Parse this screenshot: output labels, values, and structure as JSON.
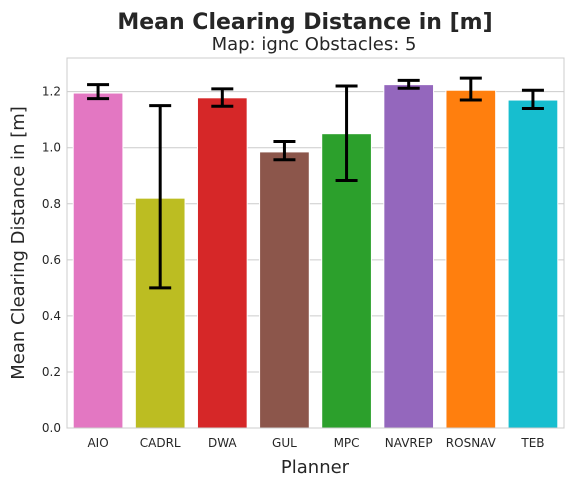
{
  "chart_data": {
    "type": "bar",
    "title": "Mean Clearing Distance in [m]",
    "subtitle": "Map: ignc Obstacles: 5",
    "xlabel": "Planner",
    "ylabel": "Mean Clearing Distance in [m]",
    "ylim": [
      0,
      1.32
    ],
    "yticks": [
      0.0,
      0.2,
      0.4,
      0.6,
      0.8,
      1.0,
      1.2
    ],
    "ytick_labels": [
      "0.0",
      "0.2",
      "0.4",
      "0.6",
      "0.8",
      "1.0",
      "1.2"
    ],
    "grid": "horizontal",
    "categories": [
      "AIO",
      "CADRL",
      "DWA",
      "GUL",
      "MPC",
      "NAVREP",
      "ROSNAV",
      "TEB"
    ],
    "values": [
      1.195,
      0.82,
      1.178,
      0.985,
      1.05,
      1.225,
      1.205,
      1.17
    ],
    "error_low": [
      1.175,
      0.5,
      1.148,
      0.957,
      0.883,
      1.212,
      1.17,
      1.14
    ],
    "error_high": [
      1.225,
      1.15,
      1.21,
      1.022,
      1.22,
      1.24,
      1.248,
      1.205
    ],
    "colors": [
      "#e377c2",
      "#bcbd22",
      "#d62728",
      "#8c564b",
      "#2ca02c",
      "#9467bd",
      "#ff7f0e",
      "#17becf"
    ]
  }
}
